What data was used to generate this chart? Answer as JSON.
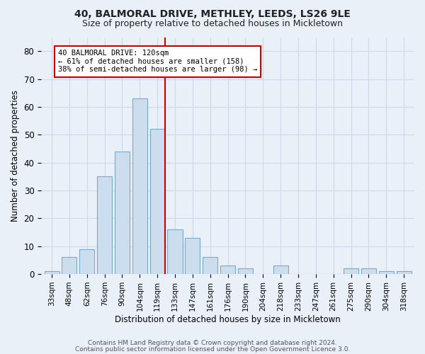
{
  "title": "40, BALMORAL DRIVE, METHLEY, LEEDS, LS26 9LE",
  "subtitle": "Size of property relative to detached houses in Mickletown",
  "xlabel": "Distribution of detached houses by size in Mickletown",
  "ylabel": "Number of detached properties",
  "categories": [
    "33sqm",
    "48sqm",
    "62sqm",
    "76sqm",
    "90sqm",
    "104sqm",
    "119sqm",
    "133sqm",
    "147sqm",
    "161sqm",
    "176sqm",
    "190sqm",
    "204sqm",
    "218sqm",
    "233sqm",
    "247sqm",
    "261sqm",
    "275sqm",
    "290sqm",
    "304sqm",
    "318sqm"
  ],
  "values": [
    1,
    6,
    9,
    35,
    44,
    63,
    52,
    16,
    13,
    6,
    3,
    2,
    0,
    3,
    0,
    0,
    0,
    2,
    2,
    1,
    1
  ],
  "bar_color": "#ccdded",
  "bar_edge_color": "#7aaac8",
  "vline_x_index": 6,
  "annotation_line1": "40 BALMORAL DRIVE: 120sqm",
  "annotation_line2": "← 61% of detached houses are smaller (158)",
  "annotation_line3": "38% of semi-detached houses are larger (98) →",
  "annotation_box_color": "#ffffff",
  "annotation_box_edge": "#cc0000",
  "vline_color": "#cc0000",
  "ylim": [
    0,
    85
  ],
  "yticks": [
    0,
    10,
    20,
    30,
    40,
    50,
    60,
    70,
    80
  ],
  "grid_color": "#d0d8e8",
  "bg_color": "#eaf0f8",
  "footer1": "Contains HM Land Registry data © Crown copyright and database right 2024.",
  "footer2": "Contains public sector information licensed under the Open Government Licence 3.0."
}
